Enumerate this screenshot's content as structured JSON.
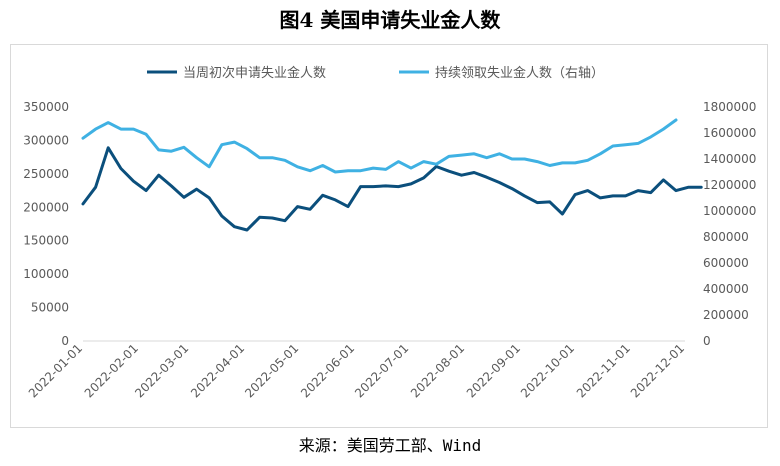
{
  "figure": {
    "title": "图4 美国申请失业金人数",
    "source": "来源：美国劳工部、Wind"
  },
  "colors": {
    "initial_claims": "#0b4f7c",
    "continuing_claims": "#3fb1e3",
    "axis": "#d9d9d9",
    "tick_text": "#595959"
  },
  "chart_data": {
    "type": "line",
    "x_ticks": [
      "2022-01-01",
      "2022-02-01",
      "2022-03-01",
      "2022-04-01",
      "2022-05-01",
      "2022-06-01",
      "2022-07-01",
      "2022-08-01",
      "2022-09-01",
      "2022-10-01",
      "2022-11-01",
      "2022-12-01"
    ],
    "y_left": {
      "ylim": [
        0,
        350000
      ],
      "ticks": [
        0,
        50000,
        100000,
        150000,
        200000,
        250000,
        300000,
        350000
      ]
    },
    "y_right": {
      "ylim": [
        0,
        1800000
      ],
      "ticks": [
        0,
        200000,
        400000,
        600000,
        800000,
        1000000,
        1200000,
        1400000,
        1600000,
        1800000
      ]
    },
    "legend_position": "top",
    "series": [
      {
        "name": "当周初次申请失业金人数",
        "axis": "left",
        "x": [
          "2022-01-01",
          "2022-01-08",
          "2022-01-15",
          "2022-01-22",
          "2022-01-29",
          "2022-02-05",
          "2022-02-12",
          "2022-02-19",
          "2022-02-26",
          "2022-03-05",
          "2022-03-12",
          "2022-03-19",
          "2022-03-26",
          "2022-04-02",
          "2022-04-09",
          "2022-04-16",
          "2022-04-23",
          "2022-04-30",
          "2022-05-07",
          "2022-05-14",
          "2022-05-21",
          "2022-05-28",
          "2022-06-04",
          "2022-06-11",
          "2022-06-18",
          "2022-06-25",
          "2022-07-02",
          "2022-07-09",
          "2022-07-16",
          "2022-07-23",
          "2022-07-30",
          "2022-08-06",
          "2022-08-13",
          "2022-08-20",
          "2022-08-27",
          "2022-09-03",
          "2022-09-10",
          "2022-09-17",
          "2022-09-24",
          "2022-10-01",
          "2022-10-08",
          "2022-10-15",
          "2022-10-22",
          "2022-10-29",
          "2022-11-05",
          "2022-11-12",
          "2022-11-19",
          "2022-11-26",
          "2022-12-03",
          "2022-12-10"
        ],
        "values": [
          205000,
          230000,
          289000,
          258000,
          239000,
          225000,
          248000,
          232000,
          215000,
          227000,
          214000,
          187000,
          171000,
          166000,
          185000,
          184000,
          180000,
          201000,
          197000,
          218000,
          211000,
          201000,
          231000,
          231000,
          232000,
          231000,
          235000,
          244000,
          261000,
          254000,
          248000,
          252000,
          245000,
          237000,
          228000,
          217000,
          207000,
          208000,
          190000,
          219000,
          225000,
          214000,
          217000,
          217000,
          225000,
          222000,
          241000,
          225000,
          230000,
          230000
        ]
      },
      {
        "name": "持续领取失业金人数（右轴）",
        "axis": "right",
        "x": [
          "2022-01-01",
          "2022-01-08",
          "2022-01-15",
          "2022-01-22",
          "2022-01-29",
          "2022-02-05",
          "2022-02-12",
          "2022-02-19",
          "2022-02-26",
          "2022-03-05",
          "2022-03-12",
          "2022-03-19",
          "2022-03-26",
          "2022-04-02",
          "2022-04-09",
          "2022-04-16",
          "2022-04-23",
          "2022-04-30",
          "2022-05-07",
          "2022-05-14",
          "2022-05-21",
          "2022-05-28",
          "2022-06-04",
          "2022-06-11",
          "2022-06-18",
          "2022-06-25",
          "2022-07-02",
          "2022-07-09",
          "2022-07-16",
          "2022-07-23",
          "2022-07-30",
          "2022-08-06",
          "2022-08-13",
          "2022-08-20",
          "2022-08-27",
          "2022-09-03",
          "2022-09-10",
          "2022-09-17",
          "2022-09-24",
          "2022-10-01",
          "2022-10-08",
          "2022-10-15",
          "2022-10-22",
          "2022-10-29",
          "2022-11-05",
          "2022-11-12",
          "2022-11-19",
          "2022-11-26"
        ],
        "values": [
          1560000,
          1630000,
          1680000,
          1630000,
          1630000,
          1590000,
          1470000,
          1460000,
          1490000,
          1410000,
          1340000,
          1510000,
          1530000,
          1480000,
          1410000,
          1410000,
          1390000,
          1340000,
          1310000,
          1350000,
          1300000,
          1310000,
          1310000,
          1330000,
          1320000,
          1380000,
          1330000,
          1380000,
          1360000,
          1420000,
          1430000,
          1440000,
          1410000,
          1440000,
          1400000,
          1400000,
          1380000,
          1350000,
          1370000,
          1370000,
          1390000,
          1440000,
          1500000,
          1510000,
          1520000,
          1570000,
          1630000,
          1700000
        ]
      }
    ]
  }
}
